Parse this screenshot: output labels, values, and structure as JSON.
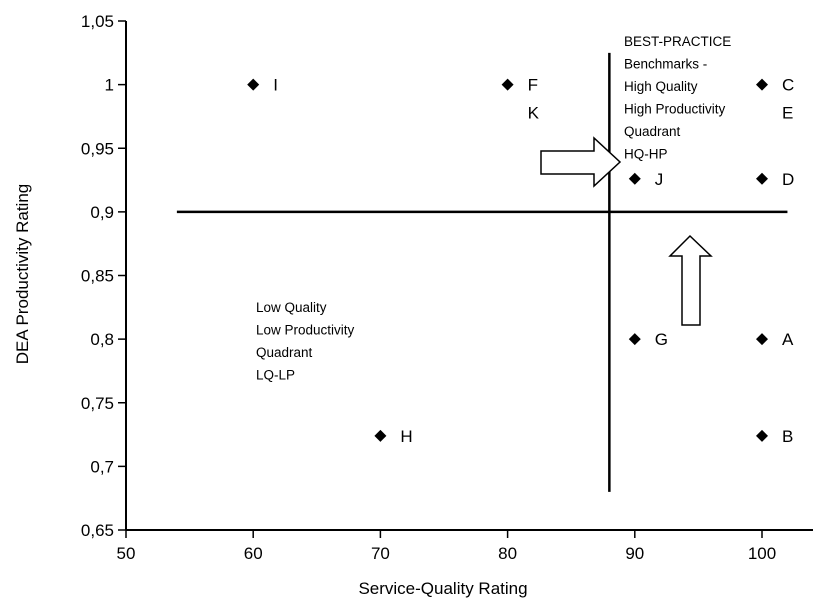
{
  "chart_data": {
    "type": "scatter",
    "title": "",
    "xlabel": "Service-Quality Rating",
    "ylabel": "DEA Productivity Rating",
    "xlim": [
      50,
      100
    ],
    "ylim": [
      0.65,
      1.05
    ],
    "x_ticks": [
      "50",
      "60",
      "70",
      "80",
      "90",
      "100"
    ],
    "y_ticks": [
      "0,65",
      "0,7",
      "0,75",
      "0,8",
      "0,85",
      "0,9",
      "0,95",
      "1",
      "1,05"
    ],
    "grid": false,
    "points": [
      {
        "label": "I",
        "x": 60,
        "y": 1.0
      },
      {
        "label": "F",
        "x": 80,
        "y": 1.0
      },
      {
        "label": "K",
        "x": 80,
        "y": 1.0
      },
      {
        "label": "C",
        "x": 100,
        "y": 1.0
      },
      {
        "label": "E",
        "x": 100,
        "y": 1.0
      },
      {
        "label": "J",
        "x": 90,
        "y": 0.926
      },
      {
        "label": "D",
        "x": 100,
        "y": 0.926
      },
      {
        "label": "G",
        "x": 90,
        "y": 0.8
      },
      {
        "label": "A",
        "x": 100,
        "y": 0.8
      },
      {
        "label": "H",
        "x": 70,
        "y": 0.724
      },
      {
        "label": "B",
        "x": 100,
        "y": 0.724
      }
    ],
    "dividers": {
      "vertical_x": 88,
      "vertical_y_range": [
        0.68,
        1.025
      ],
      "horizontal_y": 0.9,
      "horizontal_x_range": [
        54,
        102
      ]
    },
    "annotations": [
      {
        "lines": [
          "BEST-PRACTICE",
          "Benchmarks -",
          "High Quality",
          "High Productivity",
          "Quadrant",
          "HQ-HP"
        ]
      },
      {
        "lines": [
          "Low Quality",
          "Low Productivity",
          "Quadrant",
          "LQ-LP"
        ]
      }
    ]
  }
}
